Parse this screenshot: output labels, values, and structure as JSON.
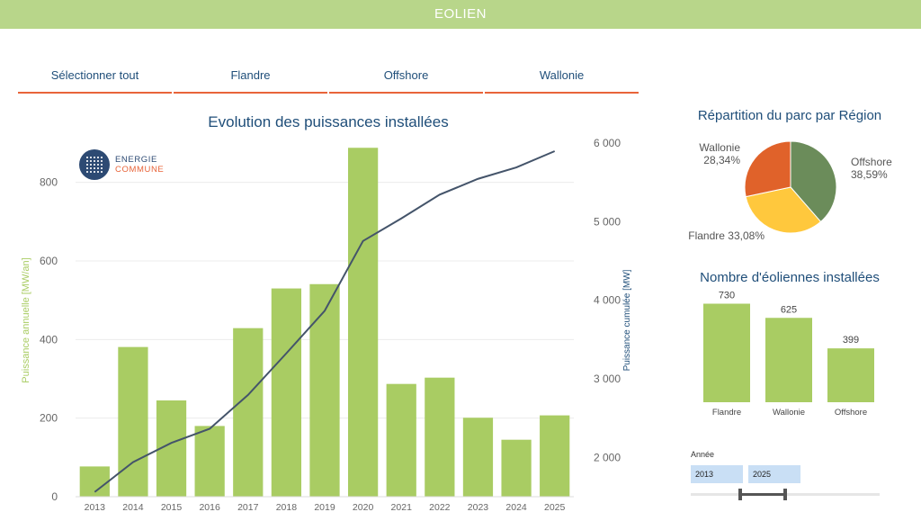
{
  "header": {
    "title": "EOLIEN"
  },
  "tabs": [
    {
      "label": "Sélectionner tout"
    },
    {
      "label": "Flandre"
    },
    {
      "label": "Offshore"
    },
    {
      "label": "Wallonie"
    }
  ],
  "logo": {
    "line1": "ENERGIE",
    "line2": "COMMUNE"
  },
  "colors": {
    "bar": "#a9cc63",
    "line": "#44546a",
    "accent": "#e8643a",
    "title": "#1f4e79",
    "header": "#b8d68a"
  },
  "chart_data": [
    {
      "type": "bar+line",
      "title": "Evolution des puissances installées",
      "categories": [
        "2013",
        "2014",
        "2015",
        "2016",
        "2017",
        "2018",
        "2019",
        "2020",
        "2021",
        "2022",
        "2023",
        "2024",
        "2025"
      ],
      "series": [
        {
          "name": "Puissance annuelle [MW/an]",
          "type": "bar",
          "axis": "left",
          "values": [
            77,
            381,
            245,
            180,
            429,
            530,
            541,
            888,
            287,
            303,
            201,
            145,
            207
          ]
        },
        {
          "name": "Puissance cumulée [MW]",
          "type": "line",
          "axis": "right",
          "values": [
            1560,
            1940,
            2185,
            2365,
            2795,
            3325,
            3866,
            4754,
            5041,
            5344,
            5545,
            5690,
            5897
          ]
        }
      ],
      "ylabel": "Puissance annuelle [MW/an]",
      "y2label": "Puissance cumulée [MW]",
      "ylim": [
        0,
        900
      ],
      "y2lim": [
        1500,
        6000
      ],
      "yticks": [
        0,
        200,
        400,
        600,
        800
      ],
      "ytick_labels": [
        "0",
        "200",
        "400",
        "600",
        "800"
      ],
      "y2ticks": [
        2000,
        3000,
        4000,
        5000,
        6000
      ],
      "y2tick_labels": [
        "2 000",
        "3 000",
        "4 000",
        "5 000",
        "6 000"
      ]
    },
    {
      "type": "pie",
      "title": "Répartition du parc par Région",
      "slices": [
        {
          "name": "Offshore",
          "value": 38.59,
          "label": "38,59%",
          "color": "#6b8c5a"
        },
        {
          "name": "Flandre",
          "value": 33.08,
          "label": "33,08%",
          "color": "#ffc83d"
        },
        {
          "name": "Wallonie",
          "value": 28.34,
          "label": "28,34%",
          "color": "#e0622a"
        }
      ]
    },
    {
      "type": "bar",
      "title": "Nombre d'éoliennes installées",
      "categories": [
        "Flandre",
        "Wallonie",
        "Offshore"
      ],
      "values": [
        730,
        625,
        399
      ],
      "value_labels": [
        "730",
        "625",
        "399"
      ],
      "ylim": [
        0,
        800
      ]
    }
  ],
  "filter": {
    "label": "Année",
    "from": "2013",
    "to": "2025"
  }
}
